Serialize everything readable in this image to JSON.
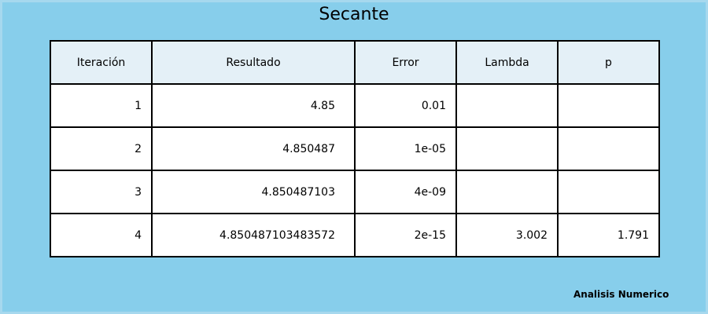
{
  "chart_data": {
    "type": "table",
    "title": "Secante",
    "columns": [
      "Iteración",
      "Resultado",
      "Error",
      "Lambda",
      "p"
    ],
    "rows": [
      [
        "1",
        "4.85",
        "0.01",
        "",
        ""
      ],
      [
        "2",
        "4.850487",
        "1e-05",
        "",
        ""
      ],
      [
        "3",
        "4.850487103",
        "4e-09",
        "",
        ""
      ],
      [
        "4",
        "4.850487103483572",
        "2e-15",
        "3.002",
        "1.791"
      ]
    ]
  },
  "footer": "Analisis Numerico",
  "colors": {
    "background": "#87ceeb",
    "header_fill": "#e4f0f7",
    "border": "#000000"
  }
}
